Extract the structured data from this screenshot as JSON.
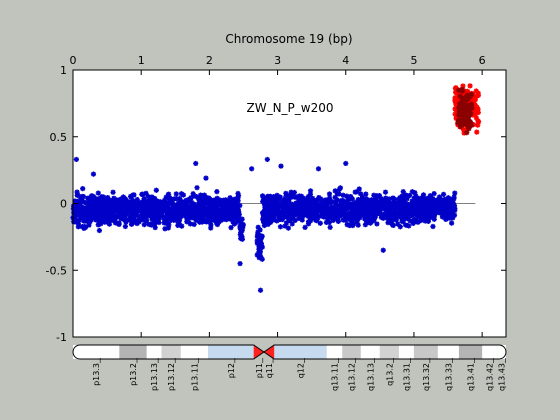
{
  "figure_background": "#c0c4bd",
  "chart_data": {
    "type": "scatter",
    "title": "Chromosome 19 (bp)",
    "annotation": "ZW_N_P_w200",
    "xlim": [
      0,
      6.35
    ],
    "ylim": [
      -1,
      1
    ],
    "x_ticks": [
      0,
      1,
      2,
      3,
      4,
      5,
      6
    ],
    "y_ticks": [
      -1,
      -0.5,
      0,
      0.5,
      1
    ],
    "y_tick_labels": [
      "-1",
      "-0.5",
      "0",
      "0.5",
      "1"
    ],
    "x_axis_position": "top",
    "grid": false,
    "legend": "none",
    "reference_line": {
      "y": 0,
      "x_range": [
        0,
        5.9
      ],
      "color": "#808080"
    },
    "series": [
      {
        "marker": "asterisk",
        "color": "#0000c8",
        "segments": [
          {
            "x_range": [
              0.0,
              2.45
            ],
            "mean": -0.05,
            "spread": 0.1,
            "min": -0.32,
            "max": 0.18
          },
          {
            "x_range": [
              2.45,
              2.5
            ],
            "mean": -0.2,
            "spread": 0.1,
            "min": -0.48,
            "max": 0.0
          },
          {
            "x_range": [
              2.7,
              2.78
            ],
            "mean": -0.32,
            "spread": 0.12,
            "min": -0.62,
            "max": 0.05
          },
          {
            "x_range": [
              2.78,
              5.6
            ],
            "mean": -0.04,
            "spread": 0.1,
            "min": -0.38,
            "max": 0.22
          }
        ],
        "sampled_points": [
          [
            0.05,
            0.33
          ],
          [
            0.3,
            0.22
          ],
          [
            1.8,
            0.3
          ],
          [
            1.95,
            0.19
          ],
          [
            2.62,
            0.26
          ],
          [
            2.85,
            0.33
          ],
          [
            3.05,
            0.28
          ],
          [
            3.6,
            0.26
          ],
          [
            4.0,
            0.3
          ],
          [
            2.75,
            -0.65
          ],
          [
            2.45,
            -0.45
          ],
          [
            4.55,
            -0.35
          ]
        ]
      },
      {
        "marker": "asterisk",
        "color": "#ff0000",
        "segments": [
          {
            "x_range": [
              5.6,
              5.95
            ],
            "mean": 0.72,
            "spread": 0.14,
            "min": 0.3,
            "max": 1.0
          }
        ]
      },
      {
        "marker": "asterisk",
        "color": "#8b0000",
        "segments": [
          {
            "x_range": [
              5.65,
              5.85
            ],
            "mean": 0.7,
            "spread": 0.14,
            "min": 0.35,
            "max": 0.98
          }
        ]
      }
    ]
  },
  "ideogram": {
    "x_range": [
      0,
      6.35
    ],
    "centromere_x": [
      2.65,
      2.95
    ],
    "bands": [
      {
        "label": "p13.3",
        "start": 0.0,
        "end": 0.68,
        "fill": "#ffffff"
      },
      {
        "label": "p13.2",
        "start": 0.68,
        "end": 1.08,
        "fill": "#b4b4b4"
      },
      {
        "label": "p13.13",
        "start": 1.08,
        "end": 1.3,
        "fill": "#ffffff"
      },
      {
        "label": "p13.12",
        "start": 1.3,
        "end": 1.58,
        "fill": "#d2d2d2"
      },
      {
        "label": "p13.11",
        "start": 1.58,
        "end": 1.98,
        "fill": "#ffffff"
      },
      {
        "label": "p12",
        "start": 1.98,
        "end": 2.65,
        "fill": "#c6daf0"
      },
      {
        "label": "p11",
        "start": 2.65,
        "end": 2.8,
        "fill": "#ff2020"
      },
      {
        "label": "q11",
        "start": 2.8,
        "end": 2.95,
        "fill": "#ff2020"
      },
      {
        "label": "q12",
        "start": 2.95,
        "end": 3.72,
        "fill": "#c6daf0"
      },
      {
        "label": "q13.11",
        "start": 3.72,
        "end": 3.95,
        "fill": "#ffffff"
      },
      {
        "label": "q13.12",
        "start": 3.95,
        "end": 4.22,
        "fill": "#c8c8c8"
      },
      {
        "label": "q13.13",
        "start": 4.22,
        "end": 4.5,
        "fill": "#ffffff"
      },
      {
        "label": "q13.2",
        "start": 4.5,
        "end": 4.78,
        "fill": "#d2d2d2"
      },
      {
        "label": "q13.31",
        "start": 4.78,
        "end": 5.0,
        "fill": "#ffffff"
      },
      {
        "label": "q13.32",
        "start": 5.0,
        "end": 5.35,
        "fill": "#c8c8c8"
      },
      {
        "label": "q13.33",
        "start": 5.35,
        "end": 5.66,
        "fill": "#ffffff"
      },
      {
        "label": "q13.41",
        "start": 5.66,
        "end": 6.0,
        "fill": "#b4b4b4"
      },
      {
        "label": "q13.42",
        "start": 6.0,
        "end": 6.22,
        "fill": "#ffffff"
      },
      {
        "label": "q13.43",
        "start": 6.22,
        "end": 6.35,
        "fill": "#ffffff"
      }
    ]
  }
}
